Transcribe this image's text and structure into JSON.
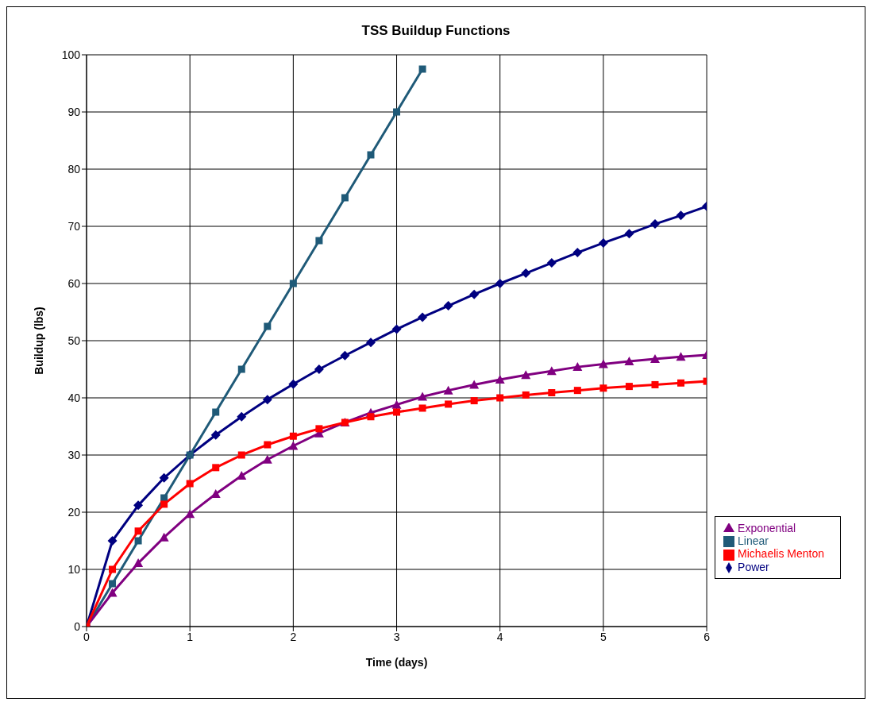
{
  "chart_data": {
    "type": "line",
    "title": "TSS Buildup Functions",
    "xlabel": "Time (days)",
    "ylabel": "Buildup (lbs)",
    "x": [
      0,
      0.25,
      0.5,
      0.75,
      1,
      1.25,
      1.5,
      1.75,
      2,
      2.25,
      2.5,
      2.75,
      3,
      3.25,
      3.5,
      3.75,
      4,
      4.25,
      4.5,
      4.75,
      5,
      5.25,
      5.5,
      5.75,
      6
    ],
    "series": [
      {
        "name": "Power",
        "color": "#000080",
        "marker": "diamond",
        "values": [
          0,
          15,
          21.2,
          26,
          30,
          33.5,
          36.7,
          39.7,
          42.4,
          45,
          47.4,
          49.7,
          52,
          54.1,
          56.1,
          58.1,
          60,
          61.8,
          63.6,
          65.4,
          67.1,
          68.7,
          70.4,
          71.9,
          73.5
        ]
      },
      {
        "name": "Linear",
        "color": "#1f5a78",
        "marker": "square",
        "values": [
          0,
          7.5,
          15,
          22.5,
          30,
          37.5,
          45,
          52.5,
          60,
          67.5,
          75,
          82.5,
          90,
          97.5,
          null,
          null,
          null,
          null,
          null,
          null,
          null,
          null,
          null,
          null,
          null
        ]
      },
      {
        "name": "Exponential",
        "color": "#800080",
        "marker": "triangle",
        "values": [
          0,
          5.9,
          11.1,
          15.6,
          19.7,
          23.2,
          26.4,
          29.2,
          31.6,
          33.8,
          35.7,
          37.4,
          38.8,
          40.2,
          41.3,
          42.3,
          43.2,
          44,
          44.7,
          45.4,
          45.9,
          46.4,
          46.8,
          47.2,
          47.5
        ]
      },
      {
        "name": "Michaelis Menton",
        "color": "#ff0000",
        "marker": "square",
        "values": [
          0,
          10,
          16.7,
          21.4,
          25,
          27.8,
          30,
          31.8,
          33.3,
          34.6,
          35.7,
          36.7,
          37.5,
          38.2,
          38.9,
          39.5,
          40,
          40.5,
          40.9,
          41.3,
          41.7,
          42,
          42.3,
          42.6,
          42.9
        ]
      }
    ],
    "xlim": [
      0,
      6
    ],
    "xticks": [
      0,
      1,
      2,
      3,
      4,
      5,
      6
    ],
    "ylim": [
      0,
      100
    ],
    "yticks": [
      0,
      10,
      20,
      30,
      40,
      50,
      60,
      70,
      80,
      90,
      100
    ],
    "grid": true,
    "legend": "bottom right",
    "line_style": "solid"
  }
}
